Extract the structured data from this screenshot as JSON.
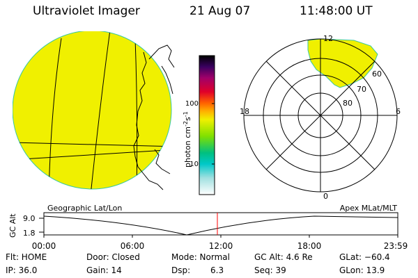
{
  "header": {
    "instrument": "Ultraviolet Imager",
    "date": "21 Aug 07",
    "time": "11:48:00 UT"
  },
  "colorbar": {
    "label": "photon cm",
    "label_sup1": "-2",
    "label_mid": "s",
    "label_sup2": "-1",
    "ticks": [
      {
        "label": "100",
        "value": 100
      },
      {
        "label": "10",
        "value": 10
      }
    ],
    "scale": "log"
  },
  "polar": {
    "mlt_labels": {
      "top": "12",
      "left": "18",
      "right": "6",
      "bottom": "0"
    },
    "lat_labels": [
      "60",
      "70",
      "80"
    ]
  },
  "timeline": {
    "y_axis_label": "GC Alt",
    "left_title": "Geographic Lat/Lon",
    "right_title": "Apex MLat/MLT",
    "y_ticks": [
      "9.0",
      "1.8"
    ],
    "x_ticks": [
      "00:00",
      "06:00",
      "12:00",
      "18:00",
      "23:59"
    ],
    "current_time": "11:48",
    "marker_color": "#ff0000"
  },
  "info": {
    "flt": "Flt: HOME",
    "door": "Door: Closed",
    "mode": "Mode: Normal",
    "gc_alt": "GC Alt: 4.6 Re",
    "glat": "GLat: −60.4",
    "ip": "IP: 36.0",
    "gain": "Gain: 14",
    "dsp_label": "Dsp:",
    "dsp_value": "6.3",
    "seq": "Seq: 39",
    "glon": "GLon: 13.9"
  },
  "colors": {
    "image_fill": "#f0f000",
    "oval_edge": "#38c8a0"
  }
}
